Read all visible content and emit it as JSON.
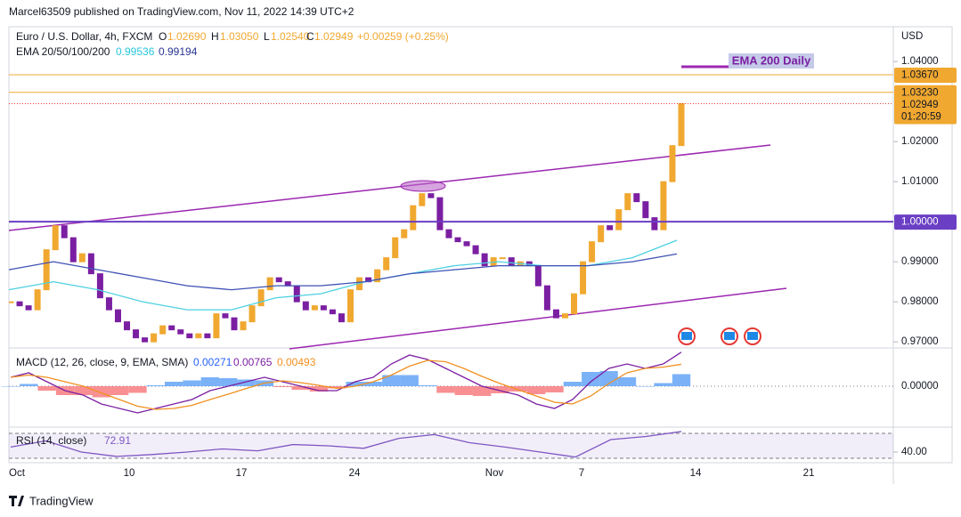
{
  "header": {
    "publisher": "Marcel63509 published on TradingView.com, Nov 11, 2022 14:39 UTC+2"
  },
  "legend": {
    "symbol": "Euro / U.S. Dollar, 4h, FXCM",
    "o": "O",
    "o_val": "1.02690",
    "h": "H",
    "h_val": "1.03050",
    "l": "L",
    "l_val": "1.02540",
    "c": "C",
    "c_val": "1.02949",
    "change": "+0.00259 (+0.25%)",
    "ema_title": "EMA 20/50/100/200",
    "ema1": "0.99536",
    "ema2": "0.99194"
  },
  "chart_data": [
    {
      "type": "candlestick",
      "currency": "USD",
      "up_color": "#f0a830",
      "down_color": "#7b1fa2",
      "close": [
        0.98,
        0.979,
        0.978,
        0.983,
        0.993,
        0.999,
        0.996,
        0.99,
        0.992,
        0.987,
        0.981,
        0.978,
        0.975,
        0.973,
        0.971,
        0.97,
        0.972,
        0.974,
        0.973,
        0.972,
        0.971,
        0.972,
        0.971,
        0.977,
        0.976,
        0.973,
        0.975,
        0.979,
        0.983,
        0.986,
        0.985,
        0.984,
        0.98,
        0.978,
        0.979,
        0.978,
        0.977,
        0.975,
        0.983,
        0.986,
        0.985,
        0.988,
        0.991,
        0.996,
        0.998,
        1.004,
        1.007,
        1.006,
        0.998,
        0.996,
        0.995,
        0.994,
        0.992,
        0.989,
        0.991,
        0.991,
        0.989,
        0.99,
        0.989,
        0.984,
        0.978,
        0.976,
        0.977,
        0.982,
        0.99,
        0.995,
        0.999,
        0.998,
        1.003,
        1.007,
        1.005,
        1.001,
        0.998,
        1.01,
        1.019,
        1.0295
      ],
      "ema": [
        {
          "color": "#4dd0e1",
          "values": [
            0.983,
            0.985,
            0.983,
            0.98,
            0.978,
            0.978,
            0.981,
            0.982,
            0.985,
            0.987,
            0.989,
            0.99,
            0.989,
            0.989,
            0.991,
            0.99536
          ]
        },
        {
          "color": "#3f51b5",
          "values": [
            0.988,
            0.99,
            0.988,
            0.986,
            0.984,
            0.983,
            0.984,
            0.984,
            0.985,
            0.987,
            0.988,
            0.989,
            0.989,
            0.989,
            0.99,
            0.99194
          ]
        }
      ],
      "ylim": [
        0.9687,
        1.0487
      ],
      "yticks": [
        {
          "value": 1.04,
          "label": "1.04000"
        },
        {
          "value": 1.02,
          "label": "1.02000"
        },
        {
          "value": 1.01,
          "label": "1.01000"
        },
        {
          "value": 0.99,
          "label": "0.99000"
        },
        {
          "value": 0.98,
          "label": "0.98000"
        },
        {
          "value": 0.97,
          "label": "0.97000"
        }
      ],
      "price_lines": [
        {
          "value": 1.0367,
          "label": "1.03670",
          "color": "#f0a830"
        },
        {
          "value": 1.0323,
          "label": "1.03230",
          "color": "#f0a830"
        },
        {
          "value": 1.02949,
          "label": "1.02949",
          "color": "#f0a830"
        },
        {
          "value": 1.0,
          "label": "1.00000",
          "color": "#6a3fc4"
        }
      ],
      "countdown": "01:20:59",
      "annotation": "EMA 200 Daily",
      "xticks": [
        "Oct",
        "10",
        "17",
        "24",
        "Nov",
        "7",
        "14",
        "21"
      ]
    },
    {
      "type": "macd",
      "title": "MACD (12, 26, close, 9, EMA, SMA)",
      "legend_values": [
        {
          "label": "0.00271",
          "color": "#2962ff"
        },
        {
          "label": "0.00765",
          "color": "#7b1fa2"
        },
        {
          "label": "0.00493",
          "color": "#f09020"
        }
      ],
      "histogram": [
        0,
        0.0005,
        -0.001,
        -0.002,
        -0.002,
        -0.0025,
        -0.002,
        -0.0015,
        0.0002,
        0.001,
        0.0013,
        0.002,
        0.0018,
        0.0015,
        0.0013,
        -0.0002,
        -0.0008,
        -0.0012,
        -0.0005,
        0.001,
        0.001,
        0.0025,
        0.0025,
        0.0002,
        -0.0015,
        -0.002,
        -0.0022,
        -0.0016,
        -0.0012,
        -0.0018,
        -0.0014,
        0.001,
        0.0032,
        0.0034,
        0.002,
        0,
        0.0007,
        0.00271
      ],
      "macd": [
        0.002,
        0.003,
        0.001,
        -0.001,
        -0.002,
        -0.004,
        -0.005,
        -0.006,
        -0.005,
        -0.004,
        -0.003,
        -0.001,
        0,
        0.001,
        0.002,
        0.001,
        0,
        -0.001,
        -0.001,
        0.001,
        0.002,
        0.005,
        0.007,
        0.006,
        0.004,
        0.002,
        0,
        -0.001,
        -0.002,
        -0.004,
        -0.005,
        -0.003,
        0.001,
        0.004,
        0.005,
        0.004,
        0.005,
        0.00765
      ],
      "signal": [
        0.002,
        0.0025,
        0.002,
        0.001,
        0,
        -0.0015,
        -0.003,
        -0.0045,
        -0.0052,
        -0.005,
        -0.0043,
        -0.003,
        -0.0018,
        -0.0005,
        0.0007,
        0.0012,
        0.0008,
        0.0002,
        -0.0005,
        0,
        0.001,
        0.0025,
        0.0045,
        0.0058,
        0.0055,
        0.004,
        0.0022,
        0.0006,
        -0.0008,
        -0.0022,
        -0.0036,
        -0.004,
        -0.0022,
        0.0006,
        0.003,
        0.004,
        0.0043,
        0.00493
      ],
      "ylim": [
        -0.0088,
        0.0082
      ],
      "yticks": [
        {
          "value": 0,
          "label": "0.00000"
        }
      ]
    },
    {
      "type": "line",
      "title": "RSI (14, close)",
      "last": "72.91",
      "color": "#7e57c2",
      "values": [
        48,
        58,
        40,
        33,
        36,
        40,
        45,
        42,
        52,
        50,
        46,
        62,
        68,
        55,
        48,
        40,
        32,
        60,
        65,
        72.91
      ],
      "bands": [
        70,
        30
      ],
      "ylim": [
        24.3,
        77.1
      ],
      "yticks": [
        {
          "value": 40,
          "label": "40.00"
        }
      ]
    }
  ],
  "footer": {
    "brand": "TradingView"
  }
}
